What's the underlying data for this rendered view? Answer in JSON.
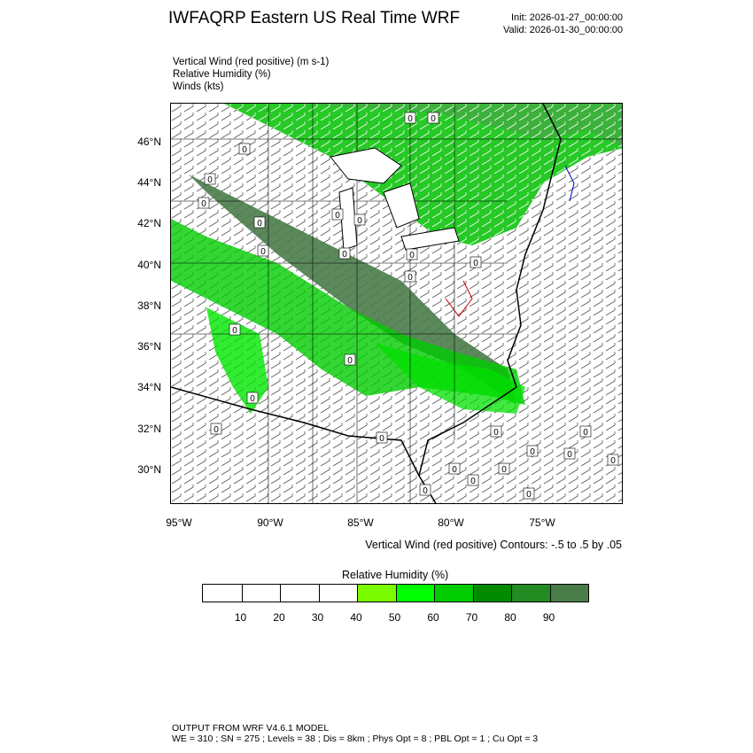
{
  "header": {
    "title": "IWFAQRP Eastern US Real Time WRF",
    "init": "Init: 2026-01-27_00:00:00",
    "valid": "Valid: 2026-01-30_00:00:00"
  },
  "fields": [
    "Vertical Wind (red positive)   (m s-1)",
    "Relative Humidity   (%)",
    "Winds   (kts)"
  ],
  "map": {
    "lat_labels": [
      "46°N",
      "44°N",
      "42°N",
      "40°N",
      "38°N",
      "36°N",
      "34°N",
      "32°N",
      "30°N"
    ],
    "lon_labels": [
      "95°W",
      "90°W",
      "85°W",
      "80°W",
      "75°W"
    ],
    "zero_label": "0"
  },
  "contour_note": "Vertical Wind (red positive) Contours: -.5 to .5 by .05",
  "colorbar": {
    "title": "Relative Humidity   (%)",
    "colors": [
      "#ffffff",
      "#ffffff",
      "#ffffff",
      "#ffffff",
      "#7cfc00",
      "#00ff00",
      "#00cc00",
      "#008b00",
      "#228b22",
      "#4a7c4a"
    ],
    "labels": [
      "10",
      "20",
      "30",
      "40",
      "50",
      "60",
      "70",
      "80",
      "90"
    ]
  },
  "footer": {
    "line1": "OUTPUT FROM WRF V4.6.1 MODEL",
    "line2": "WE = 310 ; SN = 275 ; Levels = 38 ; Dis = 8km ; Phys Opt = 8 ; PBL Opt = 1 ; Cu Opt = 3"
  }
}
